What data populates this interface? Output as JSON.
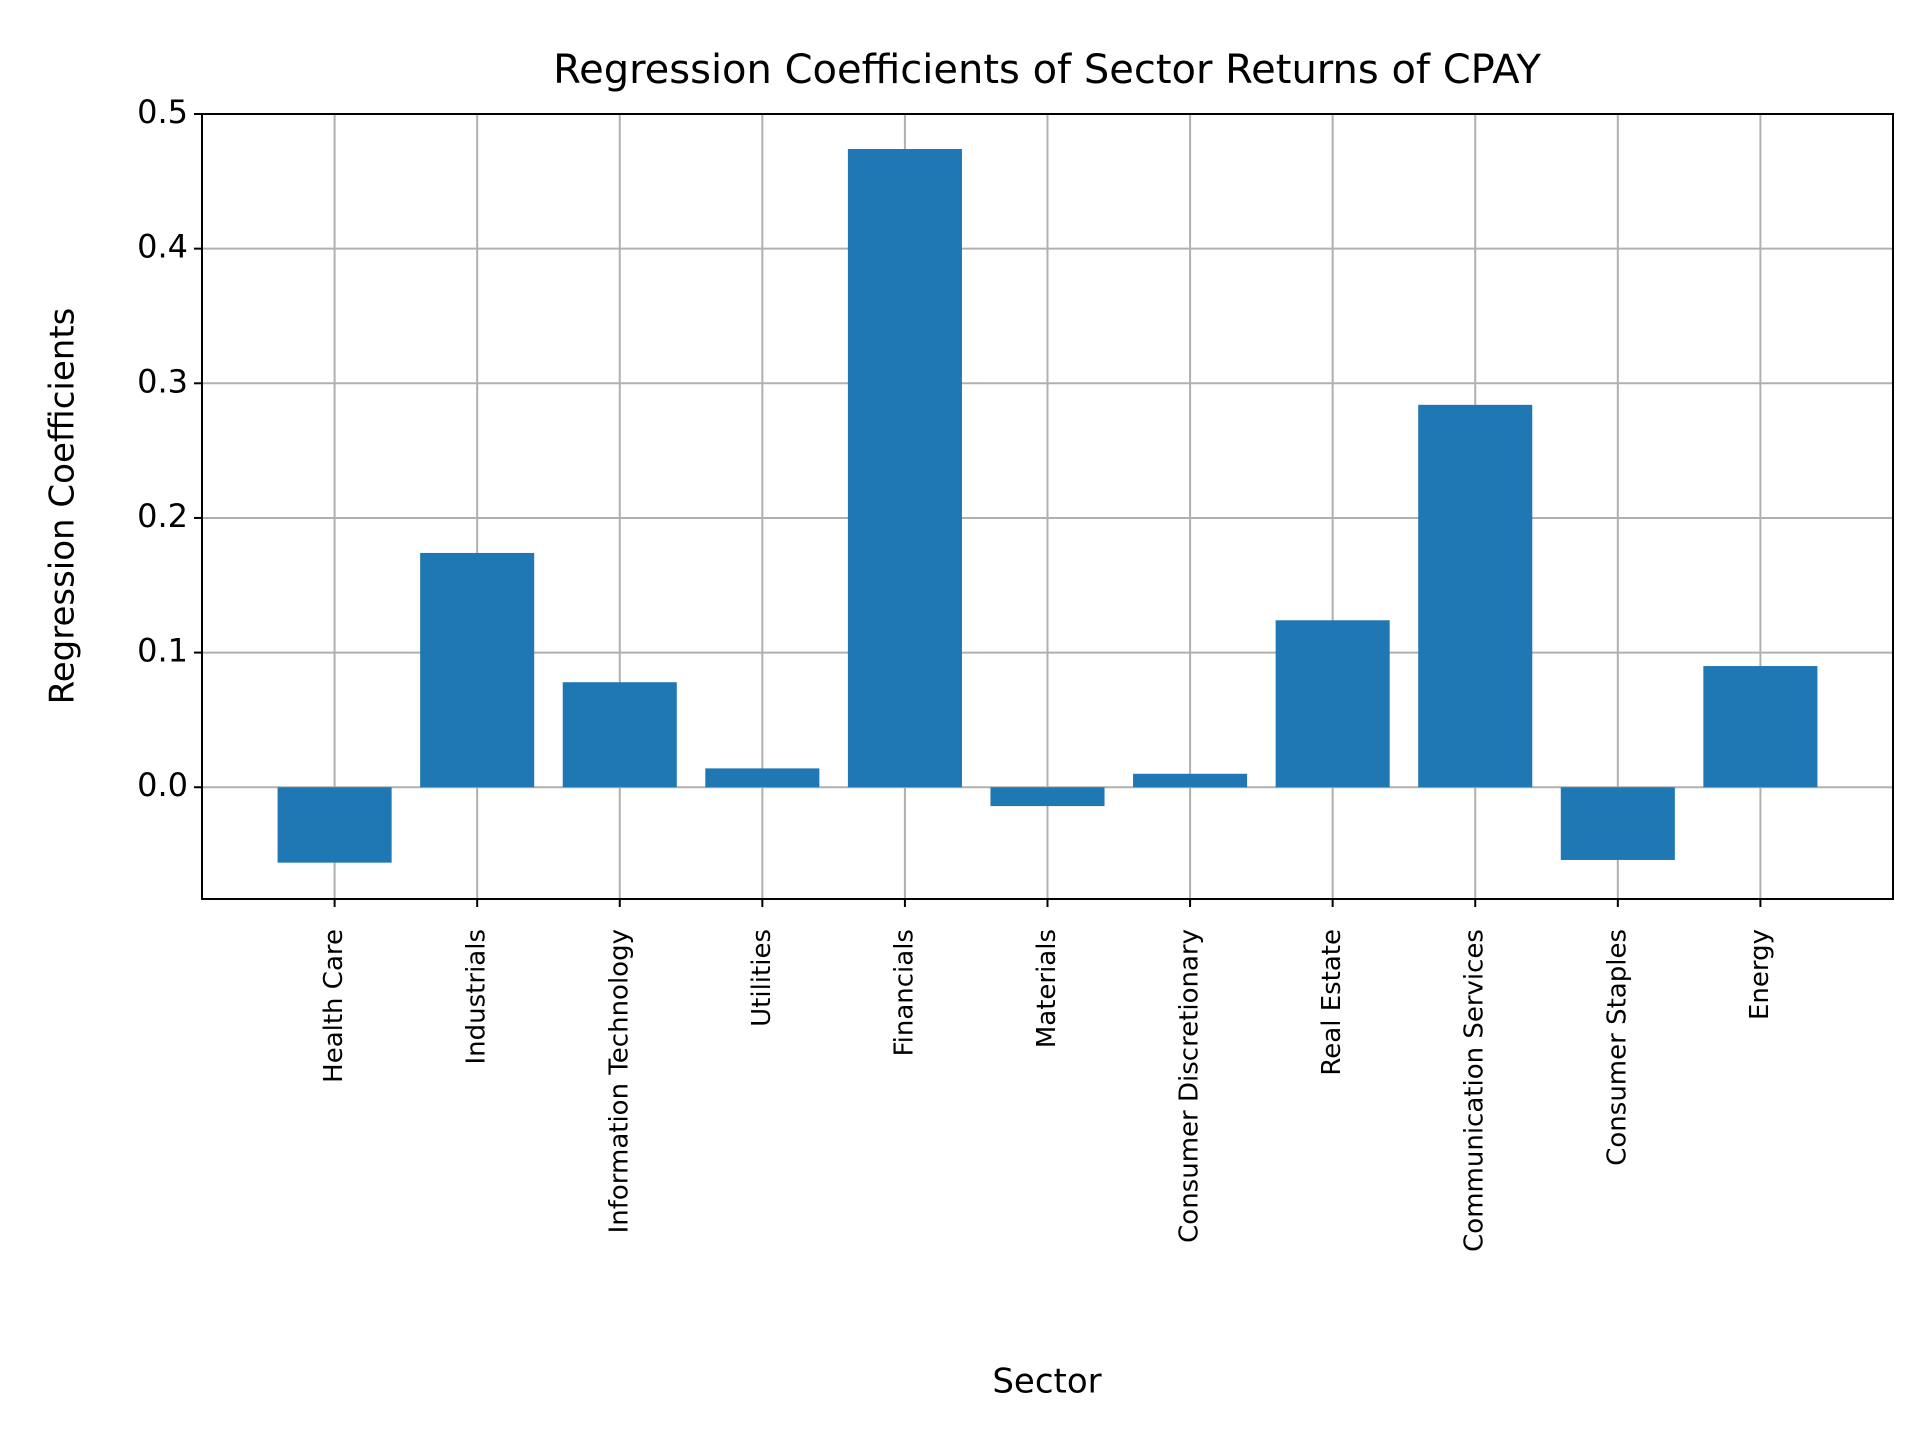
{
  "chart_data": {
    "type": "bar",
    "title": "Regression Coefficients of Sector Returns of CPAY",
    "x_label": "Sector",
    "y_label": "Regression Coefficients",
    "categories": [
      "Health Care",
      "Industrials",
      "Information Technology",
      "Utilities",
      "Financials",
      "Materials",
      "Consumer Discretionary",
      "Real Estate",
      "Communication Services",
      "Consumer Staples",
      "Energy"
    ],
    "values": [
      -0.056,
      0.174,
      0.078,
      0.014,
      0.474,
      -0.014,
      0.01,
      0.124,
      0.284,
      -0.054,
      0.09
    ],
    "color": "#1f77b4",
    "ylim": [
      -0.083,
      0.5
    ],
    "yticks": [
      {
        "value": 0,
        "label": "0.0"
      },
      0.1,
      0.2,
      0.3,
      0.4,
      0.5
    ],
    "grid": true
  }
}
